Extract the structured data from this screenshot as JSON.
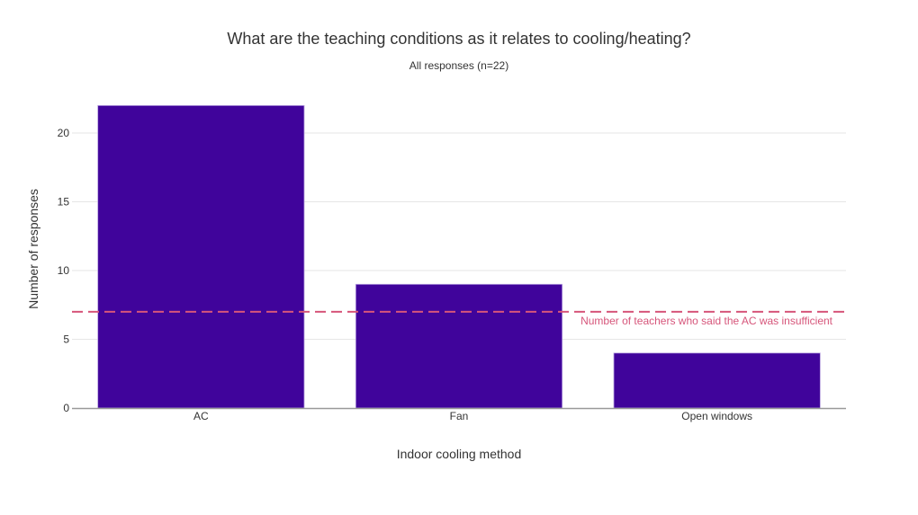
{
  "header": {
    "title": "What are the teaching conditions as it relates to cooling/heating?",
    "subtitle": "All responses (n=22)"
  },
  "colors": {
    "bar": "#40049b",
    "bar_edge": "#b9a3e0",
    "reference_line": "#d6557a",
    "gridline": "#e6e6e6",
    "axis_line": "#999999"
  },
  "chart_data": {
    "type": "bar",
    "title": "What are the teaching conditions as it relates to cooling/heating?",
    "subtitle": "All responses (n=22)",
    "xlabel": "Indoor cooling method",
    "ylabel": "Number of responses",
    "categories": [
      "AC",
      "Fan",
      "Open windows"
    ],
    "values": [
      22,
      9,
      4
    ],
    "ylim": [
      0,
      23
    ],
    "yticks": [
      0,
      5,
      10,
      15,
      20
    ],
    "grid": true,
    "legend": null,
    "annotations": [
      {
        "type": "hline",
        "y": 7,
        "style": "dashed",
        "label": "Number of teachers who said the AC was insufficient"
      }
    ]
  }
}
